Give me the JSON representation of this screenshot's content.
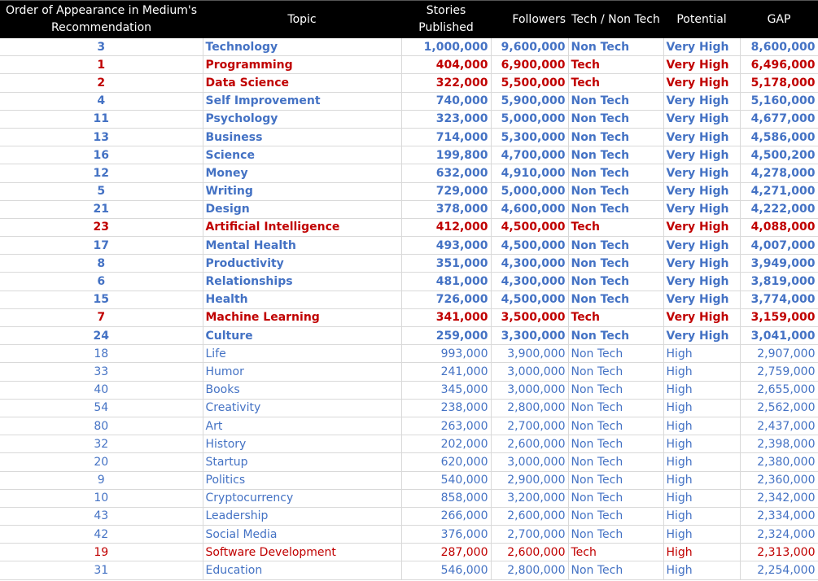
{
  "colors": {
    "non_tech": "#4472C4",
    "tech": "#C00000",
    "header_bg": "#000000"
  },
  "headers": [
    "Order of Appearance in Medium's Recommendation",
    "Topic",
    "Stories Published",
    "Followers",
    "Tech / Non Tech",
    "Potential",
    "GAP"
  ],
  "rows": [
    {
      "order": "3",
      "topic": "Technology",
      "stories": "1,000,000",
      "followers": "9,600,000",
      "type": "Non Tech",
      "potential": "Very High",
      "gap": "8,600,000"
    },
    {
      "order": "1",
      "topic": "Programming",
      "stories": "404,000",
      "followers": "6,900,000",
      "type": "Tech",
      "potential": "Very High",
      "gap": "6,496,000"
    },
    {
      "order": "2",
      "topic": "Data Science",
      "stories": "322,000",
      "followers": "5,500,000",
      "type": "Tech",
      "potential": "Very High",
      "gap": "5,178,000"
    },
    {
      "order": "4",
      "topic": "Self Improvement",
      "stories": "740,000",
      "followers": "5,900,000",
      "type": "Non Tech",
      "potential": "Very High",
      "gap": "5,160,000"
    },
    {
      "order": "11",
      "topic": "Psychology",
      "stories": "323,000",
      "followers": "5,000,000",
      "type": "Non Tech",
      "potential": "Very High",
      "gap": "4,677,000"
    },
    {
      "order": "13",
      "topic": "Business",
      "stories": "714,000",
      "followers": "5,300,000",
      "type": "Non Tech",
      "potential": "Very High",
      "gap": "4,586,000"
    },
    {
      "order": "16",
      "topic": "Science",
      "stories": "199,800",
      "followers": "4,700,000",
      "type": "Non Tech",
      "potential": "Very High",
      "gap": "4,500,200"
    },
    {
      "order": "12",
      "topic": "Money",
      "stories": "632,000",
      "followers": "4,910,000",
      "type": "Non Tech",
      "potential": "Very High",
      "gap": "4,278,000"
    },
    {
      "order": "5",
      "topic": "Writing",
      "stories": "729,000",
      "followers": "5,000,000",
      "type": "Non Tech",
      "potential": "Very High",
      "gap": "4,271,000"
    },
    {
      "order": "21",
      "topic": "Design",
      "stories": "378,000",
      "followers": "4,600,000",
      "type": "Non Tech",
      "potential": "Very High",
      "gap": "4,222,000"
    },
    {
      "order": "23",
      "topic": "Artificial Intelligence",
      "stories": "412,000",
      "followers": "4,500,000",
      "type": "Tech",
      "potential": "Very High",
      "gap": "4,088,000"
    },
    {
      "order": "17",
      "topic": "Mental Health",
      "stories": "493,000",
      "followers": "4,500,000",
      "type": "Non Tech",
      "potential": "Very High",
      "gap": "4,007,000"
    },
    {
      "order": "8",
      "topic": "Productivity",
      "stories": "351,000",
      "followers": "4,300,000",
      "type": "Non Tech",
      "potential": "Very High",
      "gap": "3,949,000"
    },
    {
      "order": "6",
      "topic": "Relationships",
      "stories": "481,000",
      "followers": "4,300,000",
      "type": "Non Tech",
      "potential": "Very High",
      "gap": "3,819,000"
    },
    {
      "order": "15",
      "topic": "Health",
      "stories": "726,000",
      "followers": "4,500,000",
      "type": "Non Tech",
      "potential": "Very High",
      "gap": "3,774,000"
    },
    {
      "order": "7",
      "topic": "Machine Learning",
      "stories": "341,000",
      "followers": "3,500,000",
      "type": "Tech",
      "potential": "Very High",
      "gap": "3,159,000"
    },
    {
      "order": "24",
      "topic": "Culture",
      "stories": "259,000",
      "followers": "3,300,000",
      "type": "Non Tech",
      "potential": "Very High",
      "gap": "3,041,000"
    },
    {
      "order": "18",
      "topic": "Life",
      "stories": "993,000",
      "followers": "3,900,000",
      "type": "Non Tech",
      "potential": "High",
      "gap": "2,907,000"
    },
    {
      "order": "33",
      "topic": "Humor",
      "stories": "241,000",
      "followers": "3,000,000",
      "type": "Non Tech",
      "potential": "High",
      "gap": "2,759,000"
    },
    {
      "order": "40",
      "topic": "Books",
      "stories": "345,000",
      "followers": "3,000,000",
      "type": "Non Tech",
      "potential": "High",
      "gap": "2,655,000"
    },
    {
      "order": "54",
      "topic": "Creativity",
      "stories": "238,000",
      "followers": "2,800,000",
      "type": "Non Tech",
      "potential": "High",
      "gap": "2,562,000"
    },
    {
      "order": "80",
      "topic": "Art",
      "stories": "263,000",
      "followers": "2,700,000",
      "type": "Non Tech",
      "potential": "High",
      "gap": "2,437,000"
    },
    {
      "order": "32",
      "topic": "History",
      "stories": "202,000",
      "followers": "2,600,000",
      "type": "Non Tech",
      "potential": "High",
      "gap": "2,398,000"
    },
    {
      "order": "20",
      "topic": "Startup",
      "stories": "620,000",
      "followers": "3,000,000",
      "type": "Non Tech",
      "potential": "High",
      "gap": "2,380,000"
    },
    {
      "order": "9",
      "topic": "Politics",
      "stories": "540,000",
      "followers": "2,900,000",
      "type": "Non Tech",
      "potential": "High",
      "gap": "2,360,000"
    },
    {
      "order": "10",
      "topic": "Cryptocurrency",
      "stories": "858,000",
      "followers": "3,200,000",
      "type": "Non Tech",
      "potential": "High",
      "gap": "2,342,000"
    },
    {
      "order": "43",
      "topic": "Leadership",
      "stories": "266,000",
      "followers": "2,600,000",
      "type": "Non Tech",
      "potential": "High",
      "gap": "2,334,000"
    },
    {
      "order": "42",
      "topic": "Social Media",
      "stories": "376,000",
      "followers": "2,700,000",
      "type": "Non Tech",
      "potential": "High",
      "gap": "2,324,000"
    },
    {
      "order": "19",
      "topic": "Software Development",
      "stories": "287,000",
      "followers": "2,600,000",
      "type": "Tech",
      "potential": "High",
      "gap": "2,313,000"
    },
    {
      "order": "31",
      "topic": "Education",
      "stories": "546,000",
      "followers": "2,800,000",
      "type": "Non Tech",
      "potential": "High",
      "gap": "2,254,000"
    }
  ]
}
